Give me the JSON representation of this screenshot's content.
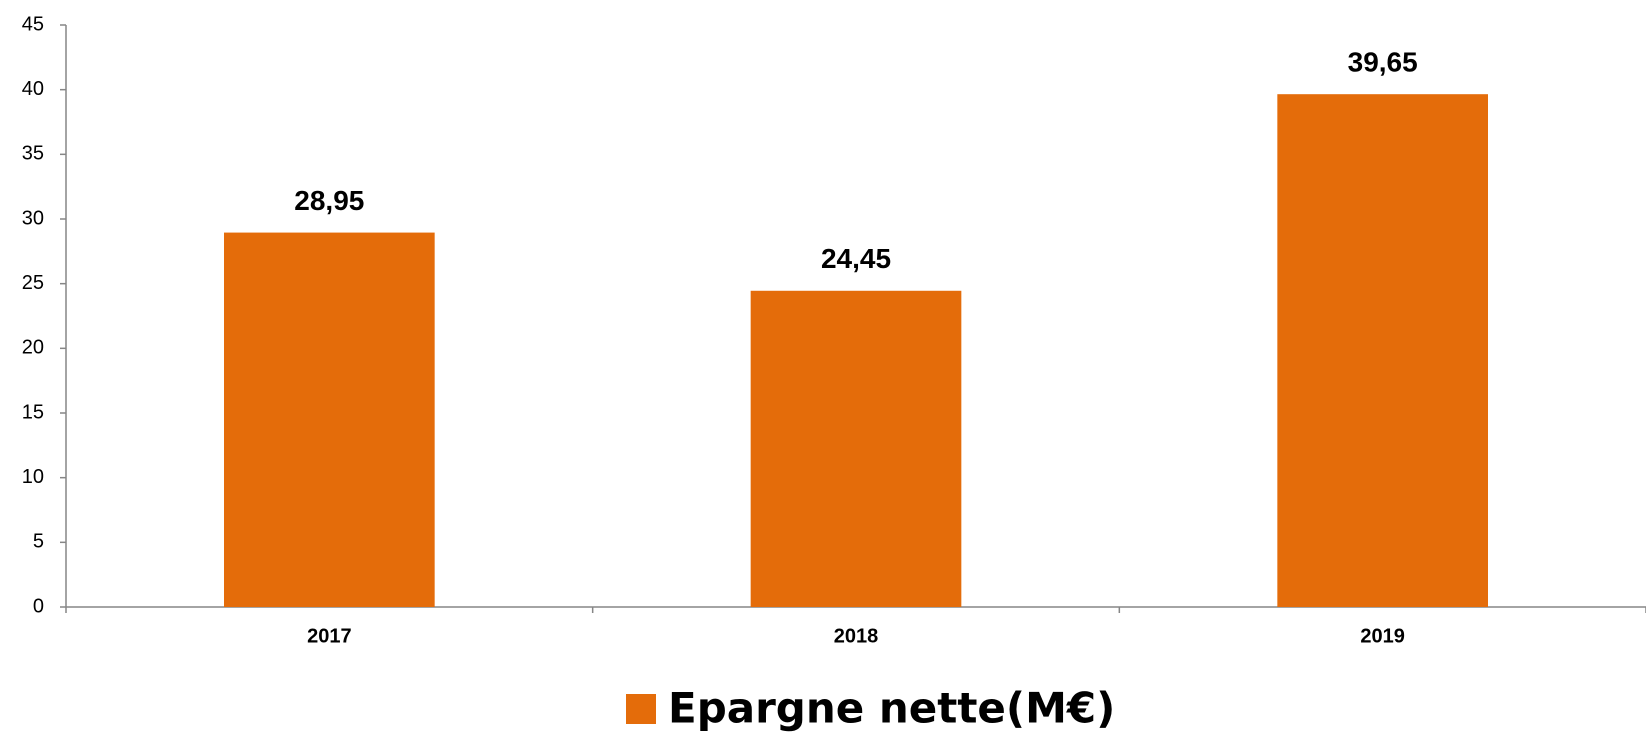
{
  "chart_data": {
    "type": "bar",
    "categories": [
      "2017",
      "2018",
      "2019"
    ],
    "series": [
      {
        "name": "Epargne nette(M€)",
        "color": "#e46c0a",
        "values": [
          28.95,
          24.45,
          39.65
        ],
        "value_labels": [
          "28,95",
          "24,45",
          "39,65"
        ]
      }
    ],
    "ylim": [
      0,
      45
    ],
    "yticks": [
      0,
      5,
      10,
      15,
      20,
      25,
      30,
      35,
      40,
      45
    ],
    "grid": false,
    "legend": "bottom"
  }
}
